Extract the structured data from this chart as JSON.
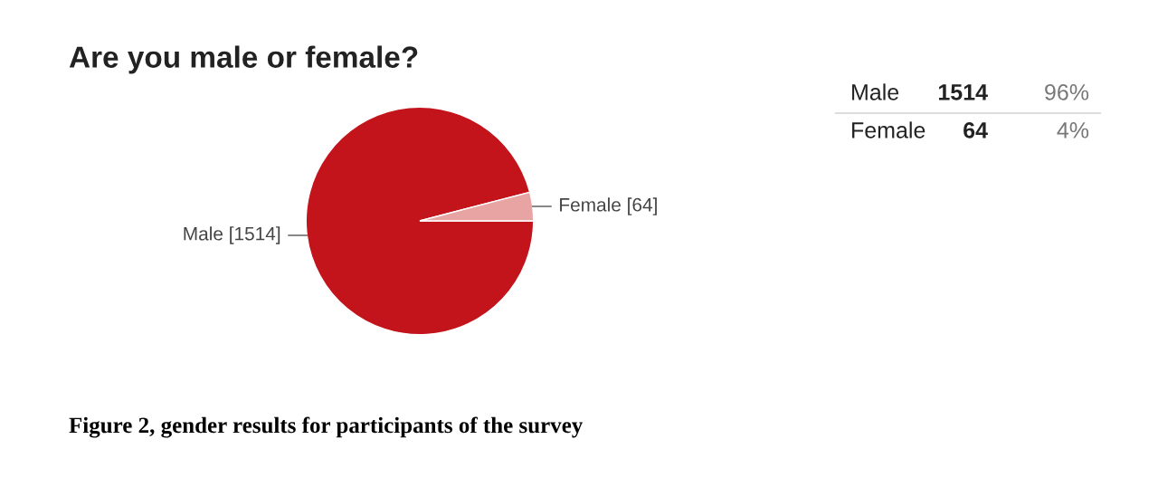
{
  "chart_data": {
    "type": "pie",
    "title": "Are you male or female?",
    "categories": [
      "Male [1514]",
      "Female [64]"
    ],
    "values": [
      1514,
      64
    ],
    "colors": [
      "#c4141b",
      "#e8a3a3"
    ],
    "legend": false,
    "annotations": [
      "Figure 2, gender results for participants of the survey",
      "Male",
      "1514",
      "96%",
      "Female",
      "64",
      "4%"
    ]
  }
}
